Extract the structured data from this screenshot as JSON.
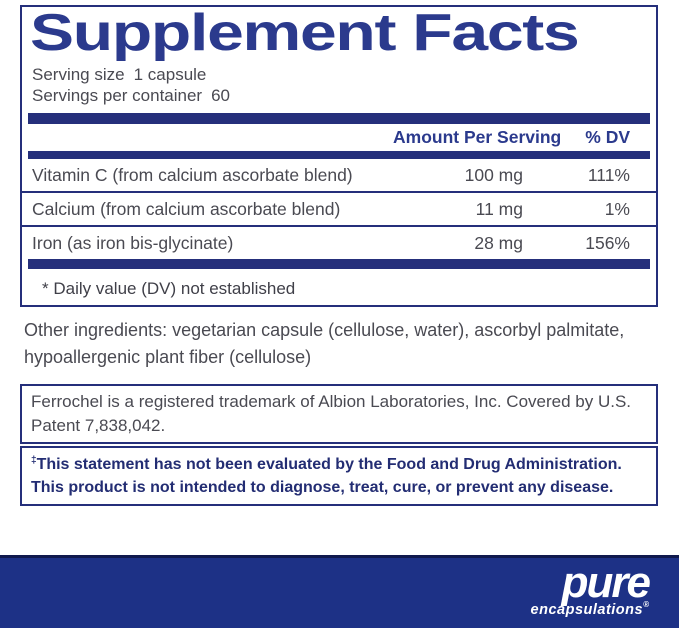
{
  "colors": {
    "navy_title": "#2b3a8d",
    "navy_bar": "#252f7b",
    "navy_band": "#1d3186",
    "body_text": "#4a4a52"
  },
  "panel": {
    "title": "Supplement Facts",
    "serving_size_label": "Serving size",
    "serving_size_value": "1 capsule",
    "servings_per_container_label": "Servings per container",
    "servings_per_container_value": "60",
    "columns": {
      "amount": "Amount Per Serving",
      "dv": "% DV"
    },
    "rows": [
      {
        "name": "Vitamin C (from calcium ascorbate blend)",
        "amount": "100 mg",
        "dv": "111%"
      },
      {
        "name": "Calcium (from calcium ascorbate blend)",
        "amount": "11 mg",
        "dv": "1%"
      },
      {
        "name": "Iron (as iron bis-glycinate)",
        "amount": "28 mg",
        "dv": "156%"
      }
    ],
    "footnote": "* Daily value (DV) not established"
  },
  "other_ingredients": {
    "line1": "Other ingredients: vegetarian capsule (cellulose, water), ascorbyl palmitate,",
    "line2": "hypoallergenic plant fiber (cellulose)"
  },
  "trademark_note": {
    "line1": "Ferrochel is a registered trademark of Albion Laboratories, Inc. Covered by U.S.",
    "line2": "Patent 7,838,042."
  },
  "fda_disclaimer": {
    "dagger": "‡",
    "line1": "This statement has not been evaluated by the Food and Drug Administration.",
    "line2": "This product is not intended to diagnose, treat, cure, or prevent any disease."
  },
  "brand": {
    "name": "pure",
    "subname": "encapsulations",
    "registered": "®"
  }
}
